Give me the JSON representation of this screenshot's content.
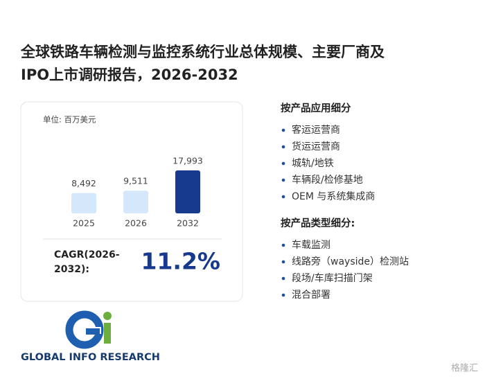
{
  "title_lines": [
    "全球铁路车辆检测与监控系统行业总体规模、主要厂商及",
    "IPO上市调研报告，2026-2032"
  ],
  "chart_data": {
    "type": "bar",
    "subtitle": "单位: 百万美元",
    "categories": [
      "2025",
      "2026",
      "2032"
    ],
    "values": [
      8492,
      9511,
      17993
    ],
    "value_labels": [
      "8,492",
      "9,511",
      "17,993"
    ],
    "colors": [
      "#d5e7fa",
      "#d5e7fa",
      "#173a8e"
    ]
  },
  "cagr": {
    "label_lines": [
      "CAGR(2026-",
      "2032):"
    ],
    "value": "11.2%"
  },
  "segments": [
    {
      "heading": "按产品应用细分",
      "items": [
        "客运运营商",
        "货运运营商",
        "城轨/地铁",
        "车辆段/检修基地",
        "OEM 与系统集成商"
      ]
    },
    {
      "heading": "按产品类型细分:",
      "items": [
        "车载监测",
        "线路旁（wayside）检测站",
        "段场/车库扫描门架",
        "混合部署"
      ]
    }
  ],
  "logo": {
    "text": "GLOBAL INFO RESEARCH"
  },
  "watermark": "格隆汇"
}
